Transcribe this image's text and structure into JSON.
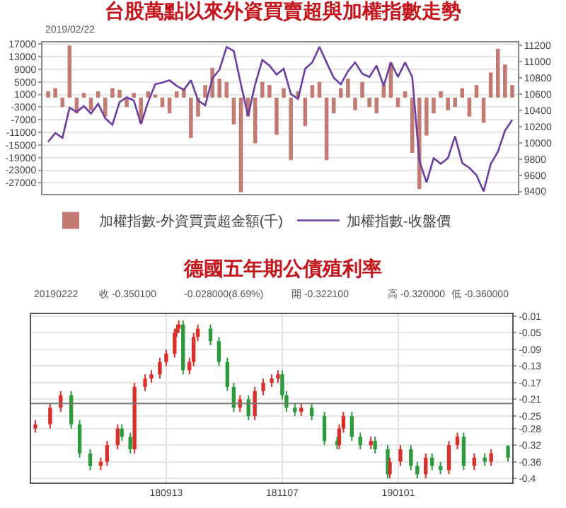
{
  "chart_data": [
    {
      "type": "bar",
      "title": "台股萬點以來外資買賣超與加權指數走勢",
      "annotations": [
        "2019/02/22"
      ],
      "categories": [
        null,
        null,
        null,
        null,
        null,
        null,
        null,
        null,
        null,
        null,
        null,
        null,
        null,
        null,
        null,
        null,
        null,
        null,
        null,
        null,
        null,
        null,
        null,
        null,
        null,
        null,
        null,
        null,
        null,
        null,
        null,
        null,
        null,
        null,
        null,
        null,
        null,
        null,
        null,
        null,
        null,
        null,
        null,
        null,
        null,
        null,
        null,
        null,
        null,
        null,
        null,
        null,
        null,
        null,
        null,
        null,
        null,
        null,
        null,
        null,
        null,
        null,
        null,
        null,
        null,
        null
      ],
      "series": [
        {
          "name": "加權指數-外資買賣超金額(千)",
          "type": "bar",
          "color": "#c27a72",
          "values": [
            2000,
            3000,
            -3000,
            16500,
            -5000,
            1500,
            -4000,
            2000,
            -6000,
            3000,
            2500,
            -3000,
            1500,
            -8000,
            2000,
            1000,
            -3000,
            -5000,
            2000,
            3000,
            -12800,
            -6000,
            4000,
            9500,
            6000,
            5000,
            -8500,
            -30000,
            -6000,
            -14500,
            5000,
            4000,
            -11800,
            3000,
            -19800,
            2000,
            -9000,
            4000,
            5000,
            -19800,
            -5000,
            3000,
            6000,
            -4000,
            5000,
            -3000,
            -5000,
            4000,
            11000,
            -3000,
            2000,
            -17500,
            -29000,
            -12000,
            -5000,
            2000,
            -4000,
            -3000,
            3000,
            -6000,
            4000,
            -8000,
            8000,
            15500,
            10500,
            4000
          ]
        },
        {
          "name": "加權指數-收盤價",
          "type": "line",
          "axis": "y2",
          "color": "#6b3fa0",
          "values": [
            10010,
            10120,
            10060,
            10430,
            10380,
            10450,
            10360,
            10480,
            10300,
            10220,
            10500,
            10560,
            10520,
            10230,
            10500,
            10720,
            10740,
            10770,
            10700,
            10650,
            10770,
            10520,
            10460,
            10790,
            10900,
            11180,
            11130,
            10720,
            10330,
            10720,
            11020,
            10950,
            10840,
            10910,
            10600,
            10540,
            10910,
            10990,
            11180,
            10990,
            10800,
            10720,
            10880,
            10990,
            10850,
            10810,
            10950,
            10700,
            10990,
            10810,
            10990,
            10810,
            9780,
            9510,
            9810,
            9740,
            9810,
            10080,
            9750,
            9690,
            9600,
            9400,
            9740,
            9890,
            10150,
            10280
          ]
        }
      ],
      "ylim": [
        -30500,
        17500
      ],
      "yticks": [
        17000,
        13000,
        9000,
        5000,
        1000,
        -3000,
        -7000,
        -11000,
        -15000,
        -19000,
        -23000,
        -27000
      ],
      "y2lim": [
        9370,
        11235
      ],
      "y2ticks": [
        11200,
        11000,
        10800,
        10600,
        10400,
        10200,
        10000,
        9800,
        9600,
        9400
      ],
      "grid": "y",
      "legend": "bottom",
      "tick_labels": "y",
      "marker": "none"
    },
    {
      "type": "candlestick",
      "title": "德國五年期公債殖利率",
      "annotations": [
        "20190222",
        "收 -0.350100",
        "-0.028000(8.69%)",
        "開 -0.322100",
        "高 -0.320000",
        "低 -0.360000"
      ],
      "x": [
        "2018-07-13",
        "2018-07-20",
        "2018-07-25",
        "2018-07-30",
        "2018-08-03",
        "2018-08-08",
        "2018-08-13",
        "2018-08-16",
        "2018-08-21",
        "2018-08-23",
        "2018-08-27",
        "2018-08-29",
        "2018-09-03",
        "2018-09-06",
        "2018-09-10",
        "2018-09-13",
        "2018-09-17",
        "2018-09-18",
        "2018-09-19",
        "2018-09-21",
        "2018-09-24",
        "2018-09-26",
        "2018-09-28",
        "2018-10-04",
        "2018-10-08",
        "2018-10-12",
        "2018-10-15",
        "2018-10-18",
        "2018-10-22",
        "2018-10-25",
        "2018-10-29",
        "2018-11-02",
        "2018-11-05",
        "2018-11-07",
        "2018-11-09",
        "2018-11-13",
        "2018-11-16",
        "2018-11-21",
        "2018-11-27",
        "2018-12-03",
        "2018-12-04",
        "2018-12-06",
        "2018-12-10",
        "2018-12-14",
        "2018-12-19",
        "2018-12-21",
        "2018-12-27",
        "2018-12-28",
        "2019-01-02",
        "2019-01-07",
        "2019-01-10",
        "2019-01-14",
        "2019-01-17",
        "2019-01-21",
        "2019-01-25",
        "2019-01-29",
        "2019-02-01",
        "2019-02-06",
        "2019-02-11",
        "2019-02-14",
        "2019-02-22"
      ],
      "ohlc": [
        [
          -0.28,
          -0.26,
          -0.29,
          -0.27
        ],
        [
          -0.27,
          -0.22,
          -0.28,
          -0.23
        ],
        [
          -0.23,
          -0.19,
          -0.24,
          -0.2
        ],
        [
          -0.2,
          -0.19,
          -0.28,
          -0.27
        ],
        [
          -0.27,
          -0.26,
          -0.35,
          -0.34
        ],
        [
          -0.34,
          -0.33,
          -0.38,
          -0.37
        ],
        [
          -0.37,
          -0.35,
          -0.38,
          -0.36
        ],
        [
          -0.36,
          -0.31,
          -0.37,
          -0.32
        ],
        [
          -0.32,
          -0.27,
          -0.33,
          -0.28
        ],
        [
          -0.28,
          -0.27,
          -0.31,
          -0.3
        ],
        [
          -0.3,
          -0.29,
          -0.34,
          -0.33
        ],
        [
          -0.33,
          -0.17,
          -0.34,
          -0.18
        ],
        [
          -0.18,
          -0.15,
          -0.19,
          -0.16
        ],
        [
          -0.16,
          -0.14,
          -0.17,
          -0.15
        ],
        [
          -0.15,
          -0.11,
          -0.16,
          -0.12
        ],
        [
          -0.12,
          -0.09,
          -0.13,
          -0.1
        ],
        [
          -0.1,
          -0.04,
          -0.11,
          -0.05
        ],
        [
          -0.05,
          -0.03,
          -0.06,
          -0.04
        ],
        [
          -0.04,
          -0.02,
          -0.05,
          -0.03
        ],
        [
          -0.03,
          -0.02,
          -0.15,
          -0.14
        ],
        [
          -0.14,
          -0.11,
          -0.15,
          -0.12
        ],
        [
          -0.12,
          -0.05,
          -0.13,
          -0.06
        ],
        [
          -0.06,
          -0.03,
          -0.07,
          -0.04
        ],
        [
          -0.04,
          -0.03,
          -0.08,
          -0.07
        ],
        [
          -0.07,
          -0.06,
          -0.13,
          -0.12
        ],
        [
          -0.12,
          -0.11,
          -0.19,
          -0.18
        ],
        [
          -0.18,
          -0.17,
          -0.24,
          -0.23
        ],
        [
          -0.23,
          -0.2,
          -0.24,
          -0.21
        ],
        [
          -0.21,
          -0.2,
          -0.26,
          -0.25
        ],
        [
          -0.25,
          -0.18,
          -0.26,
          -0.19
        ],
        [
          -0.19,
          -0.16,
          -0.2,
          -0.17
        ],
        [
          -0.17,
          -0.15,
          -0.18,
          -0.16
        ],
        [
          -0.16,
          -0.14,
          -0.17,
          -0.15
        ],
        [
          -0.15,
          -0.14,
          -0.21,
          -0.2
        ],
        [
          -0.2,
          -0.19,
          -0.24,
          -0.23
        ],
        [
          -0.23,
          -0.22,
          -0.25,
          -0.24
        ],
        [
          -0.24,
          -0.22,
          -0.25,
          -0.23
        ],
        [
          -0.23,
          -0.22,
          -0.26,
          -0.25
        ],
        [
          -0.25,
          -0.24,
          -0.32,
          -0.31
        ],
        [
          -0.31,
          -0.3,
          -0.33,
          -0.32
        ],
        [
          -0.32,
          -0.27,
          -0.33,
          -0.28
        ],
        [
          -0.28,
          -0.24,
          -0.29,
          -0.25
        ],
        [
          -0.25,
          -0.24,
          -0.31,
          -0.3
        ],
        [
          -0.3,
          -0.29,
          -0.33,
          -0.32
        ],
        [
          -0.32,
          -0.3,
          -0.33,
          -0.31
        ],
        [
          -0.31,
          -0.3,
          -0.34,
          -0.33
        ],
        [
          -0.33,
          -0.32,
          -0.4,
          -0.39
        ],
        [
          -0.39,
          -0.35,
          -0.4,
          -0.36
        ],
        [
          -0.36,
          -0.32,
          -0.37,
          -0.33
        ],
        [
          -0.33,
          -0.32,
          -0.38,
          -0.37
        ],
        [
          -0.37,
          -0.36,
          -0.4,
          -0.39
        ],
        [
          -0.39,
          -0.34,
          -0.4,
          -0.35
        ],
        [
          -0.35,
          -0.34,
          -0.38,
          -0.37
        ],
        [
          -0.37,
          -0.36,
          -0.39,
          -0.38
        ],
        [
          -0.38,
          -0.31,
          -0.39,
          -0.32
        ],
        [
          -0.32,
          -0.29,
          -0.33,
          -0.3
        ],
        [
          -0.3,
          -0.29,
          -0.38,
          -0.37
        ],
        [
          -0.37,
          -0.34,
          -0.38,
          -0.35
        ],
        [
          -0.35,
          -0.34,
          -0.37,
          -0.36
        ],
        [
          -0.36,
          -0.33,
          -0.37,
          -0.34
        ],
        [
          -0.3221,
          -0.32,
          -0.36,
          -0.3501
        ]
      ],
      "colors": [
        "#d9302c",
        "#d9302c",
        "#d9302c",
        "#2e9a3e",
        "#2e9a3e",
        "#2e9a3e",
        "#d9302c",
        "#d9302c",
        "#d9302c",
        "#2e9a3e",
        "#2e9a3e",
        "#d9302c",
        "#d9302c",
        "#d9302c",
        "#d9302c",
        "#d9302c",
        "#d9302c",
        "#d9302c",
        "#d9302c",
        "#2e9a3e",
        "#d9302c",
        "#d9302c",
        "#d9302c",
        "#2e9a3e",
        "#2e9a3e",
        "#2e9a3e",
        "#2e9a3e",
        "#d9302c",
        "#2e9a3e",
        "#d9302c",
        "#d9302c",
        "#d9302c",
        "#d9302c",
        "#2e9a3e",
        "#2e9a3e",
        "#2e9a3e",
        "#d9302c",
        "#2e9a3e",
        "#2e9a3e",
        "#2e9a3e",
        "#d9302c",
        "#d9302c",
        "#2e9a3e",
        "#2e9a3e",
        "#d9302c",
        "#2e9a3e",
        "#2e9a3e",
        "#d9302c",
        "#d9302c",
        "#2e9a3e",
        "#2e9a3e",
        "#d9302c",
        "#2e9a3e",
        "#2e9a3e",
        "#d9302c",
        "#d9302c",
        "#2e9a3e",
        "#d9302c",
        "#2e9a3e",
        "#d9302c",
        "#2e9a3e"
      ],
      "xlim": [
        "2018-07-11",
        "2019-02-24"
      ],
      "xticks": [
        {
          "value": "2018-09-13",
          "label": "180913"
        },
        {
          "value": "2018-11-07",
          "label": "181107"
        },
        {
          "value": "2019-01-01",
          "label": "190101"
        }
      ],
      "ylim": [
        -0.41,
        -0.005
      ],
      "yticks": [
        -0.01,
        -0.05,
        -0.09,
        -0.13,
        -0.17,
        -0.21,
        -0.25,
        -0.28,
        -0.32,
        -0.36,
        -0.4
      ],
      "ref_lines": [
        {
          "axis": "y",
          "value": -0.22,
          "color": "#777777"
        }
      ],
      "grid": true
    }
  ]
}
